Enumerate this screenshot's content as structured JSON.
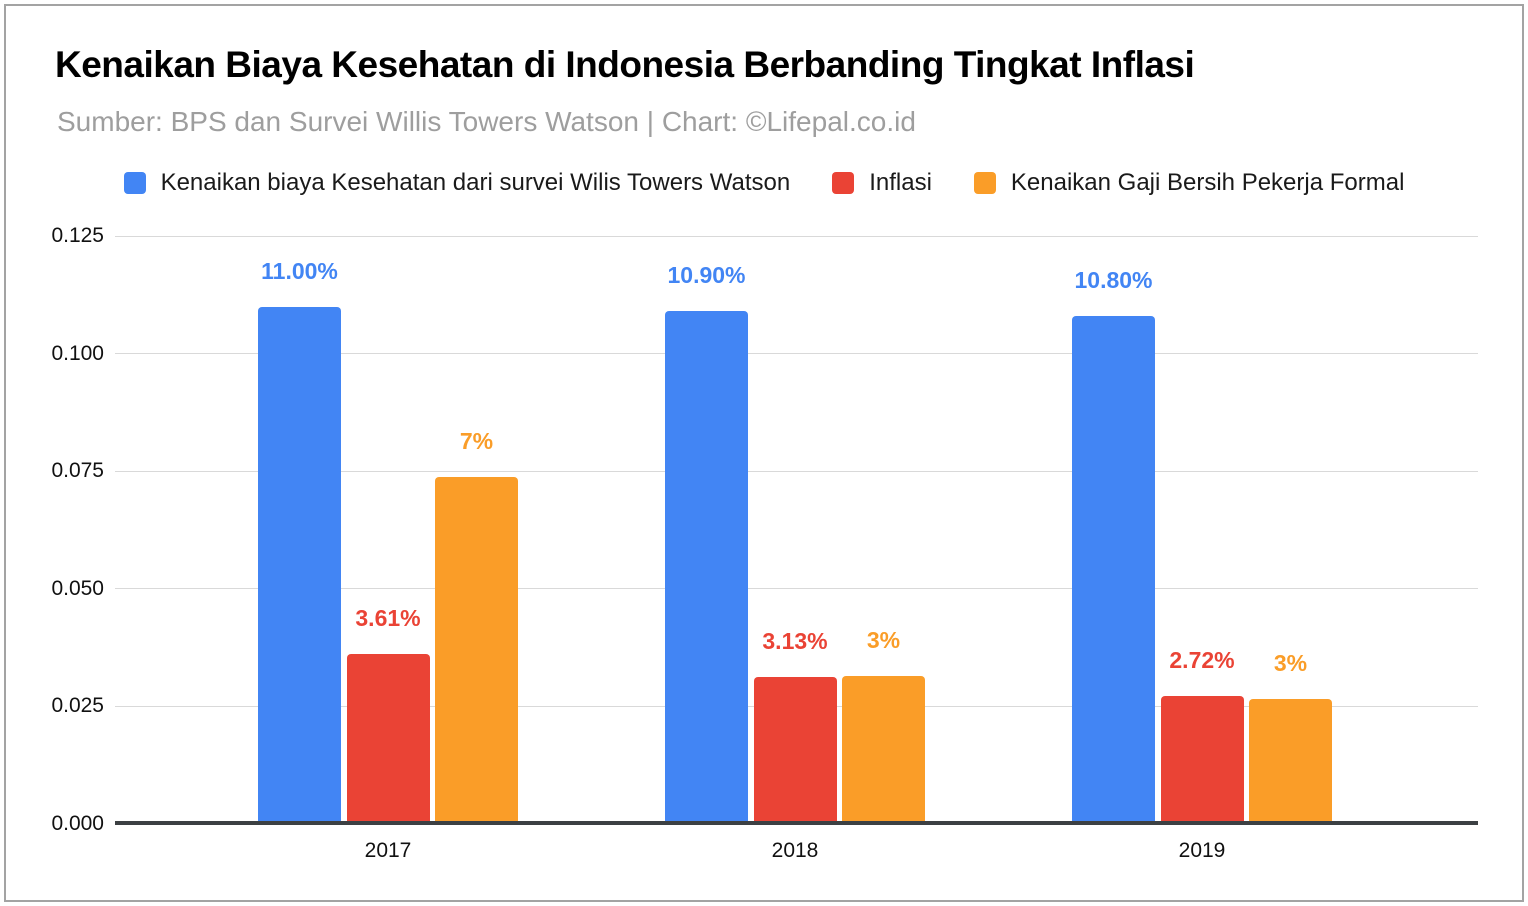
{
  "header": {
    "title": "Kenaikan Biaya Kesehatan di Indonesia Berbanding Tingkat Inflasi",
    "subtitle": "Sumber: BPS dan Survei Willis Towers Watson | Chart: ©Lifepal.co.id"
  },
  "colors": {
    "blue": "#4285F4",
    "red": "#EA4335",
    "orange": "#FA9D28",
    "gridline": "#D9D9D9",
    "axis": "#3C4043",
    "subtitle_gray": "#9E9E9E"
  },
  "chart_data": {
    "type": "bar",
    "title": "Kenaikan Biaya Kesehatan di Indonesia Berbanding Tingkat Inflasi",
    "subtitle": "Sumber: BPS dan Survei Willis Towers Watson | Chart: ©Lifepal.co.id",
    "categories": [
      "2017",
      "2018",
      "2019"
    ],
    "series": [
      {
        "name": "Kenaikan biaya Kesehatan dari survei Wilis Towers Watson",
        "color": "#4285F4",
        "values": [
          0.11,
          0.109,
          0.108
        ],
        "labels": [
          "11.00%",
          "10.90%",
          "10.80%"
        ]
      },
      {
        "name": "Inflasi",
        "color": "#EA4335",
        "values": [
          0.0361,
          0.0313,
          0.0272
        ],
        "labels": [
          "3.61%",
          "3.13%",
          "2.72%"
        ]
      },
      {
        "name": "Kenaikan Gaji Bersih Pekerja Formal",
        "color": "#FA9D28",
        "values": [
          0.0737,
          0.0315,
          0.0266
        ],
        "labels": [
          "7%",
          "3%",
          "3%"
        ]
      }
    ],
    "y_axis": {
      "min": 0,
      "max": 0.125,
      "ticks": [
        "0.000",
        "0.025",
        "0.050",
        "0.075",
        "0.100",
        "0.125"
      ]
    },
    "grid": true,
    "legend_position": "top"
  }
}
